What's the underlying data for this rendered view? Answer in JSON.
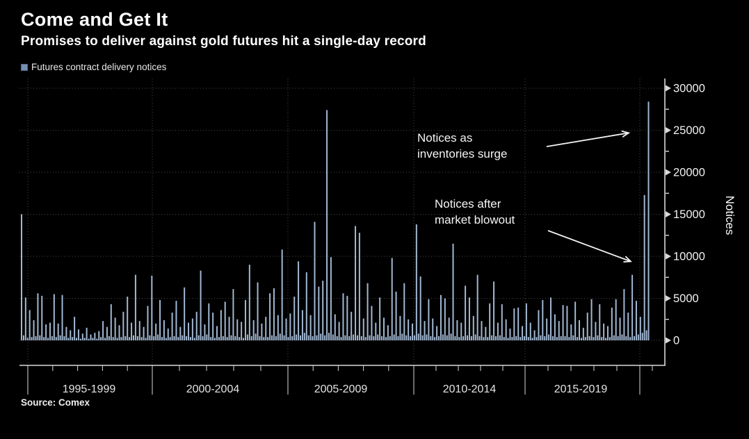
{
  "header": {
    "title": "Come and Get It",
    "subtitle": "Promises to deliver against gold futures hit a single-day record"
  },
  "source": {
    "text": "Source: Comex"
  },
  "colors": {
    "background": "#000000",
    "bar": "#a2b8d3",
    "legend_swatch": "#7390b3",
    "axis": "#d9d9d9",
    "grid": "#4a4a4a",
    "text": "#ffffff",
    "tick_label": "#f2f2f2",
    "period_label": "#e4e4e4"
  },
  "chart_data": {
    "type": "bar",
    "title": "Come and Get It",
    "subtitle": "Promises to deliver against gold futures hit a single-day record",
    "ylabel": "Notices",
    "xlabel": "",
    "ylim": [
      0,
      30000
    ],
    "grid": true,
    "legend_position": "top-left",
    "y_major_ticks": [
      0,
      5000,
      10000,
      15000,
      20000,
      25000,
      30000
    ],
    "y_tick_labels": [
      "0",
      "5000",
      "10000",
      "15000",
      "20000",
      "25000",
      "30000"
    ],
    "y_minor_tick_step": 2500,
    "x_period_labels": [
      "1995-1999",
      "2000-2004",
      "2005-2009",
      "2010-2014",
      "2015-2019"
    ],
    "x_gridline_years": [
      1995,
      2000,
      2005,
      2010,
      2015,
      2020
    ],
    "annotations": [
      {
        "text": "Notices as\ninventories surge",
        "points_to": "record spike, June 2020"
      },
      {
        "text": "Notices after\nmarket blowout",
        "points_to": "April 2020 spike"
      }
    ],
    "series": [
      {
        "name": "Futures contract delivery notices",
        "unit": "notices per delivery day (monthly peaks)",
        "start": "1994-10",
        "end": "2020-06",
        "monthly_values_by_year": [
          {
            "year": 1994,
            "first_month": 10,
            "values": [
              15000,
              600,
              5100
            ]
          },
          {
            "year": 1995,
            "first_month": 1,
            "values": [
              300,
              3600,
              400,
              2400,
              500,
              5600,
              600,
              5300,
              400,
              1900,
              300,
              2100
            ]
          },
          {
            "year": 1996,
            "first_month": 1,
            "values": [
              500,
              5500,
              400,
              2000,
              600,
              5400,
              500,
              1600,
              300,
              1200,
              400,
              2800
            ]
          },
          {
            "year": 1997,
            "first_month": 1,
            "values": [
              300,
              1300,
              200,
              800,
              300,
              1500,
              200,
              700,
              300,
              900,
              200,
              1100
            ]
          },
          {
            "year": 1998,
            "first_month": 1,
            "values": [
              400,
              2300,
              300,
              1600,
              500,
              4300,
              400,
              2700,
              300,
              1800,
              400,
              3400
            ]
          },
          {
            "year": 1999,
            "first_month": 1,
            "values": [
              500,
              5200,
              400,
              2100,
              600,
              7800,
              500,
              2300,
              400,
              1600,
              300,
              4100
            ]
          },
          {
            "year": 2000,
            "first_month": 1,
            "values": [
              600,
              7700,
              500,
              2000,
              700,
              4800,
              400,
              2400,
              300,
              1400,
              400,
              3300
            ]
          },
          {
            "year": 2001,
            "first_month": 1,
            "values": [
              500,
              4700,
              400,
              1600,
              600,
              6300,
              500,
              2100,
              400,
              2600,
              300,
              3400
            ]
          },
          {
            "year": 2002,
            "first_month": 1,
            "values": [
              600,
              8300,
              500,
              1900,
              700,
              4400,
              400,
              3300,
              300,
              1700,
              400,
              3600
            ]
          },
          {
            "year": 2003,
            "first_month": 1,
            "values": [
              500,
              4600,
              400,
              2800,
              600,
              6100,
              500,
              2500,
              400,
              2200,
              300,
              4800
            ]
          },
          {
            "year": 2004,
            "first_month": 1,
            "values": [
              700,
              9000,
              500,
              2400,
              800,
              6900,
              500,
              2000,
              400,
              2800,
              400,
              5600
            ]
          },
          {
            "year": 2005,
            "first_month": 1,
            "values": [
              600,
              6200,
              500,
              3000,
              800,
              10800,
              600,
              2600,
              400,
              3200,
              500,
              5200
            ]
          },
          {
            "year": 2006,
            "first_month": 1,
            "values": [
              700,
              9400,
              600,
              3600,
              900,
              8100,
              600,
              3000,
              500,
              14100,
              600,
              6400
            ]
          },
          {
            "year": 2007,
            "first_month": 1,
            "values": [
              800,
              7100,
              600,
              27400,
              900,
              9900,
              700,
              3100,
              500,
              2200,
              400,
              5600
            ]
          },
          {
            "year": 2008,
            "first_month": 1,
            "values": [
              600,
              5300,
              500,
              3400,
              700,
              13600,
              600,
              12800,
              500,
              2600,
              400,
              6800
            ]
          },
          {
            "year": 2009,
            "first_month": 1,
            "values": [
              600,
              4100,
              500,
              2100,
              700,
              5100,
              500,
              2700,
              400,
              1800,
              500,
              9800
            ]
          },
          {
            "year": 2010,
            "first_month": 1,
            "values": [
              700,
              5800,
              500,
              2900,
              800,
              6800,
              600,
              2500,
              500,
              2000,
              600,
              13800
            ]
          },
          {
            "year": 2011,
            "first_month": 1,
            "values": [
              800,
              7600,
              600,
              2300,
              700,
              4900,
              500,
              2600,
              400,
              1700,
              500,
              5400
            ]
          },
          {
            "year": 2012,
            "first_month": 1,
            "values": [
              700,
              5000,
              600,
              2700,
              800,
              11500,
              500,
              2400,
              400,
              2100,
              500,
              6500
            ]
          },
          {
            "year": 2013,
            "first_month": 1,
            "values": [
              600,
              5100,
              500,
              2900,
              700,
              7800,
              500,
              2300,
              400,
              1600,
              400,
              4400
            ]
          },
          {
            "year": 2014,
            "first_month": 1,
            "values": [
              600,
              7000,
              500,
              2100,
              600,
              4300,
              400,
              2500,
              300,
              1400,
              400,
              3800
            ]
          },
          {
            "year": 2015,
            "first_month": 1,
            "values": [
              500,
              3900,
              400,
              1700,
              500,
              4400,
              400,
              2100,
              300,
              1200,
              400,
              3600
            ]
          },
          {
            "year": 2016,
            "first_month": 1,
            "values": [
              600,
              4800,
              500,
              2600,
              700,
              5100,
              500,
              3100,
              400,
              2300,
              500,
              4200
            ]
          },
          {
            "year": 2017,
            "first_month": 1,
            "values": [
              500,
              4100,
              400,
              1900,
              600,
              4600,
              400,
              2400,
              300,
              1500,
              400,
              3300
            ]
          },
          {
            "year": 2018,
            "first_month": 1,
            "values": [
              500,
              4900,
              400,
              2200,
              600,
              4300,
              400,
              2000,
              300,
              1700,
              400,
              3900
            ]
          },
          {
            "year": 2019,
            "first_month": 1,
            "values": [
              600,
              4900,
              500,
              2700,
              700,
              6100,
              500,
              3300,
              400,
              7800,
              500,
              4700
            ]
          },
          {
            "year": 2020,
            "first_month": 1,
            "values": [
              700,
              2800,
              900,
              17300,
              1200,
              28400
            ]
          }
        ]
      }
    ]
  }
}
